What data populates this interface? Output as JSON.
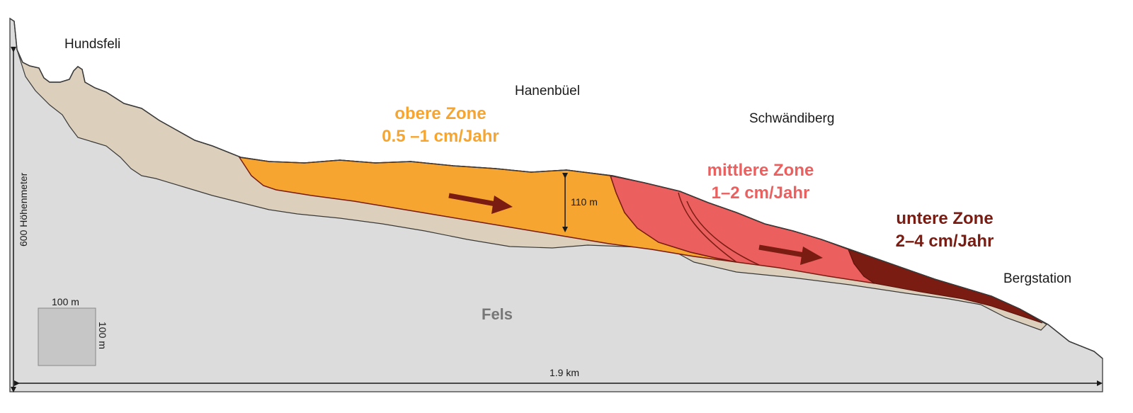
{
  "places": {
    "hundsfeli": "Hundsfeli",
    "hanenbuel": "Hanenbüel",
    "schwaendiberg": "Schwändiberg",
    "bergstation": "Bergstation"
  },
  "zones": {
    "upper": {
      "name": "obere Zone",
      "rate": "0.5 –1 cm/Jahr",
      "color": "#f6a531"
    },
    "middle": {
      "name": "mittlere Zone",
      "rate": "1–2 cm/Jahr",
      "color": "#ec5f5f"
    },
    "lower": {
      "name": "untere Zone",
      "rate": "2–4 cm/Jahr",
      "color": "#7a1c12"
    }
  },
  "labels": {
    "thickness": "110 m",
    "rock": "Fels",
    "height_axis": "600 Höhenmeter",
    "length_axis": "1.9 km",
    "scale_width": "100 m",
    "scale_height": "100 m"
  },
  "colors": {
    "rock": "#dcdcdc",
    "moraine": "#dccfbb",
    "arrow": "#7a1c12",
    "outline": "#3a3a3a"
  }
}
